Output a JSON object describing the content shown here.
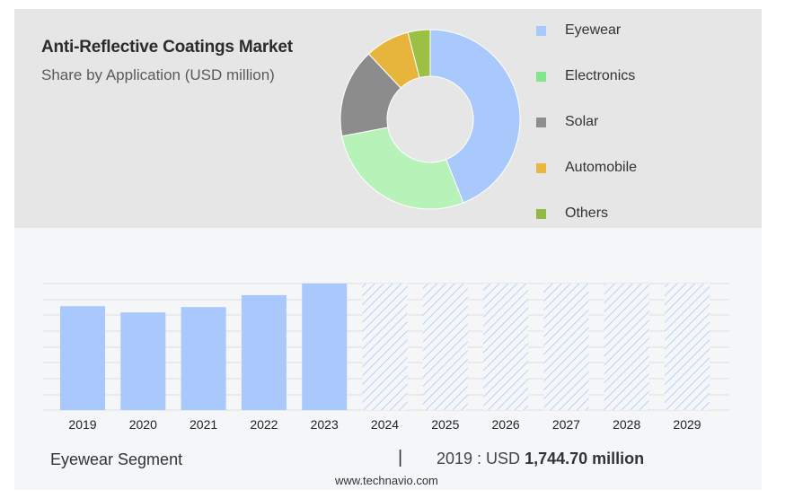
{
  "title": "Anti-Reflective Coatings Market",
  "subtitle": "Share by Application (USD million)",
  "legend": [
    {
      "label": "Eyewear",
      "color": "#a9c8fc"
    },
    {
      "label": "Electronics",
      "color": "#83e68e"
    },
    {
      "label": "Solar",
      "color": "#8e8e8e"
    },
    {
      "label": "Automobile",
      "color": "#e8b840"
    },
    {
      "label": "Others",
      "color": "#94b844"
    }
  ],
  "chart_data": [
    {
      "type": "pie",
      "title": "Anti-Reflective Coatings Market",
      "subtitle": "Share by Application (USD million)",
      "donut": true,
      "slices": [
        {
          "label": "Eyewear",
          "value": 44,
          "color": "#a9c8fc"
        },
        {
          "label": "Electronics",
          "value": 28,
          "color": "#b7f2b9"
        },
        {
          "label": "Solar",
          "value": 16,
          "color": "#8c8c8c"
        },
        {
          "label": "Automobile",
          "value": 8,
          "color": "#e8b53c"
        },
        {
          "label": "Others",
          "value": 4,
          "color": "#9cbf45"
        }
      ]
    },
    {
      "type": "bar",
      "series_name": "Eyewear Segment",
      "categories": [
        "2019",
        "2020",
        "2021",
        "2022",
        "2023",
        "2024",
        "2025",
        "2026",
        "2027",
        "2028",
        "2029"
      ],
      "values": [
        1744.7,
        1640,
        1730,
        1930,
        2125,
        null,
        null,
        null,
        null,
        null,
        null
      ],
      "forecast_from": "2024",
      "forecast_style": "hatched",
      "ylim": [
        0,
        2125
      ],
      "grid": true,
      "bar_color": "#a9c8fc"
    }
  ],
  "footer": {
    "segment": "Eyewear Segment",
    "separator": "|",
    "value_prefix": "2019 : USD",
    "value_bold": "1,744.70 million"
  },
  "source": "www.technavio.com"
}
